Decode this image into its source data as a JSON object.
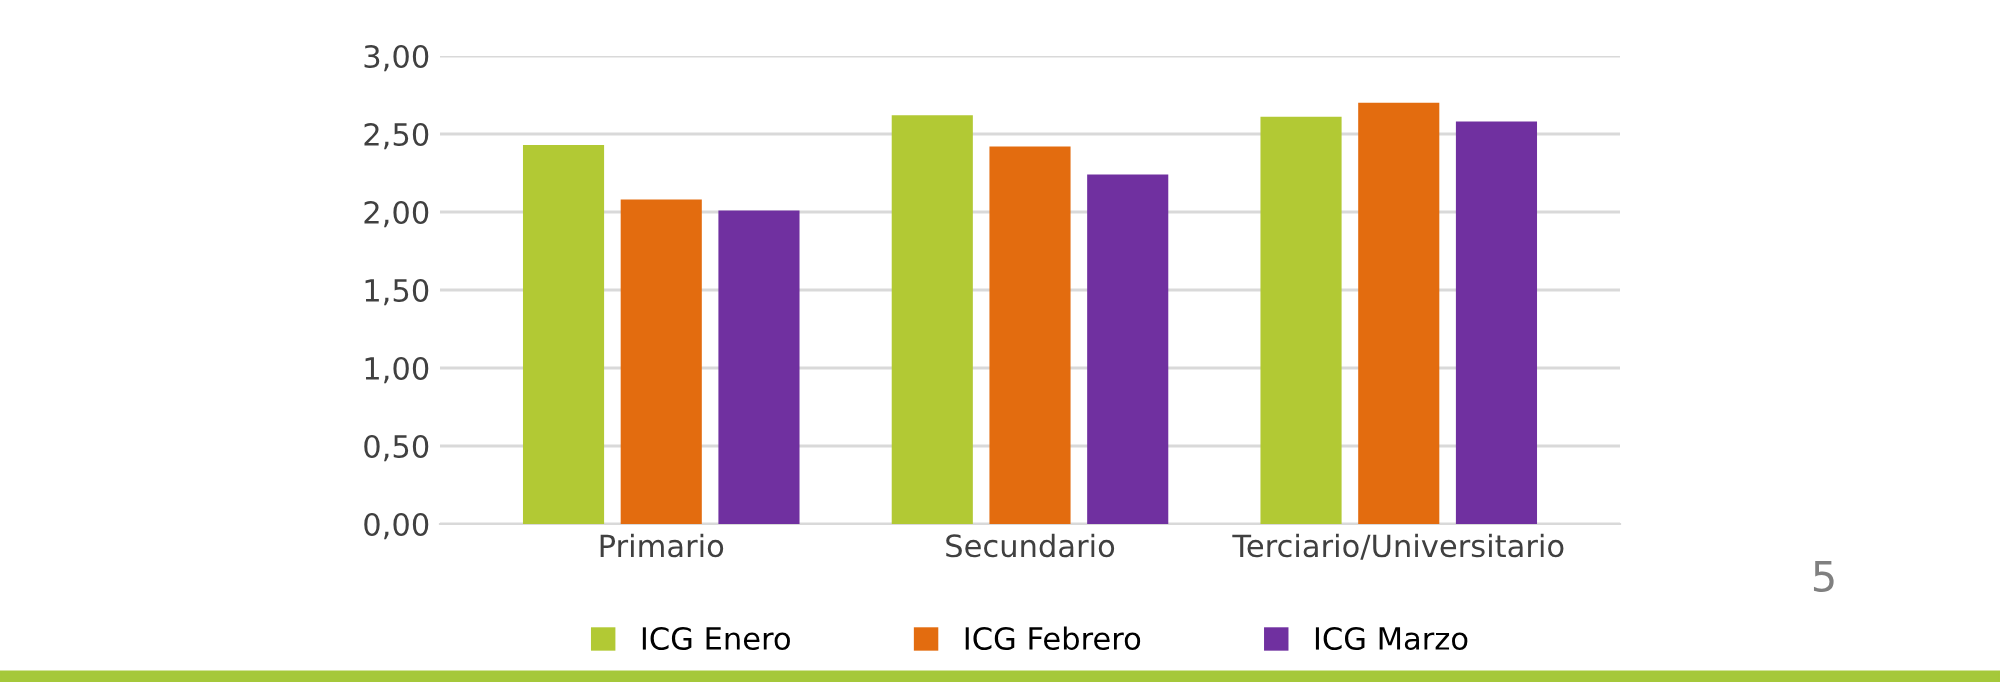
{
  "chart_data": {
    "type": "bar",
    "categories": [
      "Primario",
      "Secundario",
      "Terciario/Universitario"
    ],
    "series": [
      {
        "name": "ICG Enero",
        "color": "#b2c934",
        "values": [
          2.43,
          2.62,
          2.61
        ]
      },
      {
        "name": "ICG Febrero",
        "color": "#e36c0f",
        "values": [
          2.08,
          2.42,
          2.7
        ]
      },
      {
        "name": "ICG Marzo",
        "color": "#7030a0",
        "values": [
          2.01,
          2.24,
          2.58
        ]
      }
    ],
    "ylim": [
      0,
      3
    ],
    "yticks": [
      {
        "value": 0,
        "label": "0,00"
      },
      {
        "value": 0.5,
        "label": "0,50"
      },
      {
        "value": 1,
        "label": "1,00"
      },
      {
        "value": 1.5,
        "label": "1,50"
      },
      {
        "value": 2,
        "label": "2,00"
      },
      {
        "value": 2.5,
        "label": "2,50"
      },
      {
        "value": 3,
        "label": "3,00"
      }
    ],
    "grid": "y",
    "legend": "bottom",
    "annotations": [
      "5"
    ]
  }
}
